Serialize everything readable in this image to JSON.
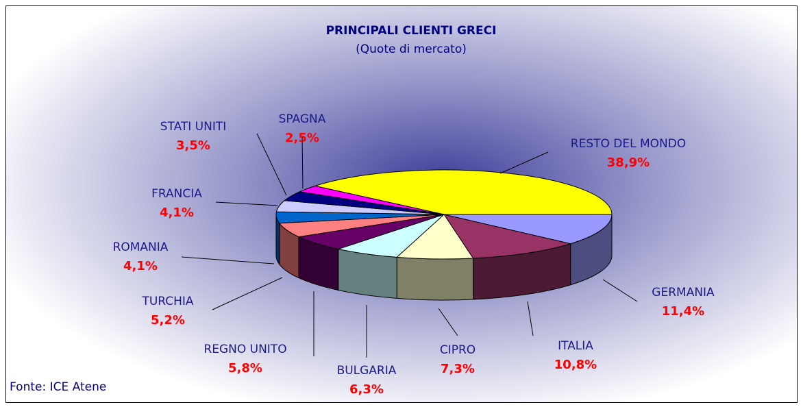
{
  "chart_data": {
    "type": "pie3d",
    "title": "PRINCIPALI CLIENTI GRECI",
    "subtitle": "(Quote di mercato)",
    "source": "Fonte: ICE Atene",
    "categories": [
      "RESTO DEL MONDO",
      "GERMANIA",
      "ITALIA",
      "CIPRO",
      "BULGARIA",
      "REGNO UNITO",
      "TURCHIA",
      "ROMANIA",
      "FRANCIA",
      "STATI UNITI",
      "SPAGNA"
    ],
    "values": [
      38.9,
      11.4,
      10.8,
      7.3,
      6.3,
      5.8,
      5.2,
      4.1,
      4.1,
      3.5,
      2.5
    ],
    "value_labels": [
      "38,9%",
      "11,4%",
      "10,8%",
      "7,3%",
      "6,3%",
      "5,8%",
      "5,2%",
      "4,1%",
      "4,1%",
      "3,5%",
      "2,5%"
    ],
    "colors": [
      "#ffff00",
      "#9999ff",
      "#993366",
      "#ffffcc",
      "#ccffff",
      "#660066",
      "#ff8080",
      "#0066cc",
      "#ccccff",
      "#000080",
      "#ff00ff"
    ]
  }
}
